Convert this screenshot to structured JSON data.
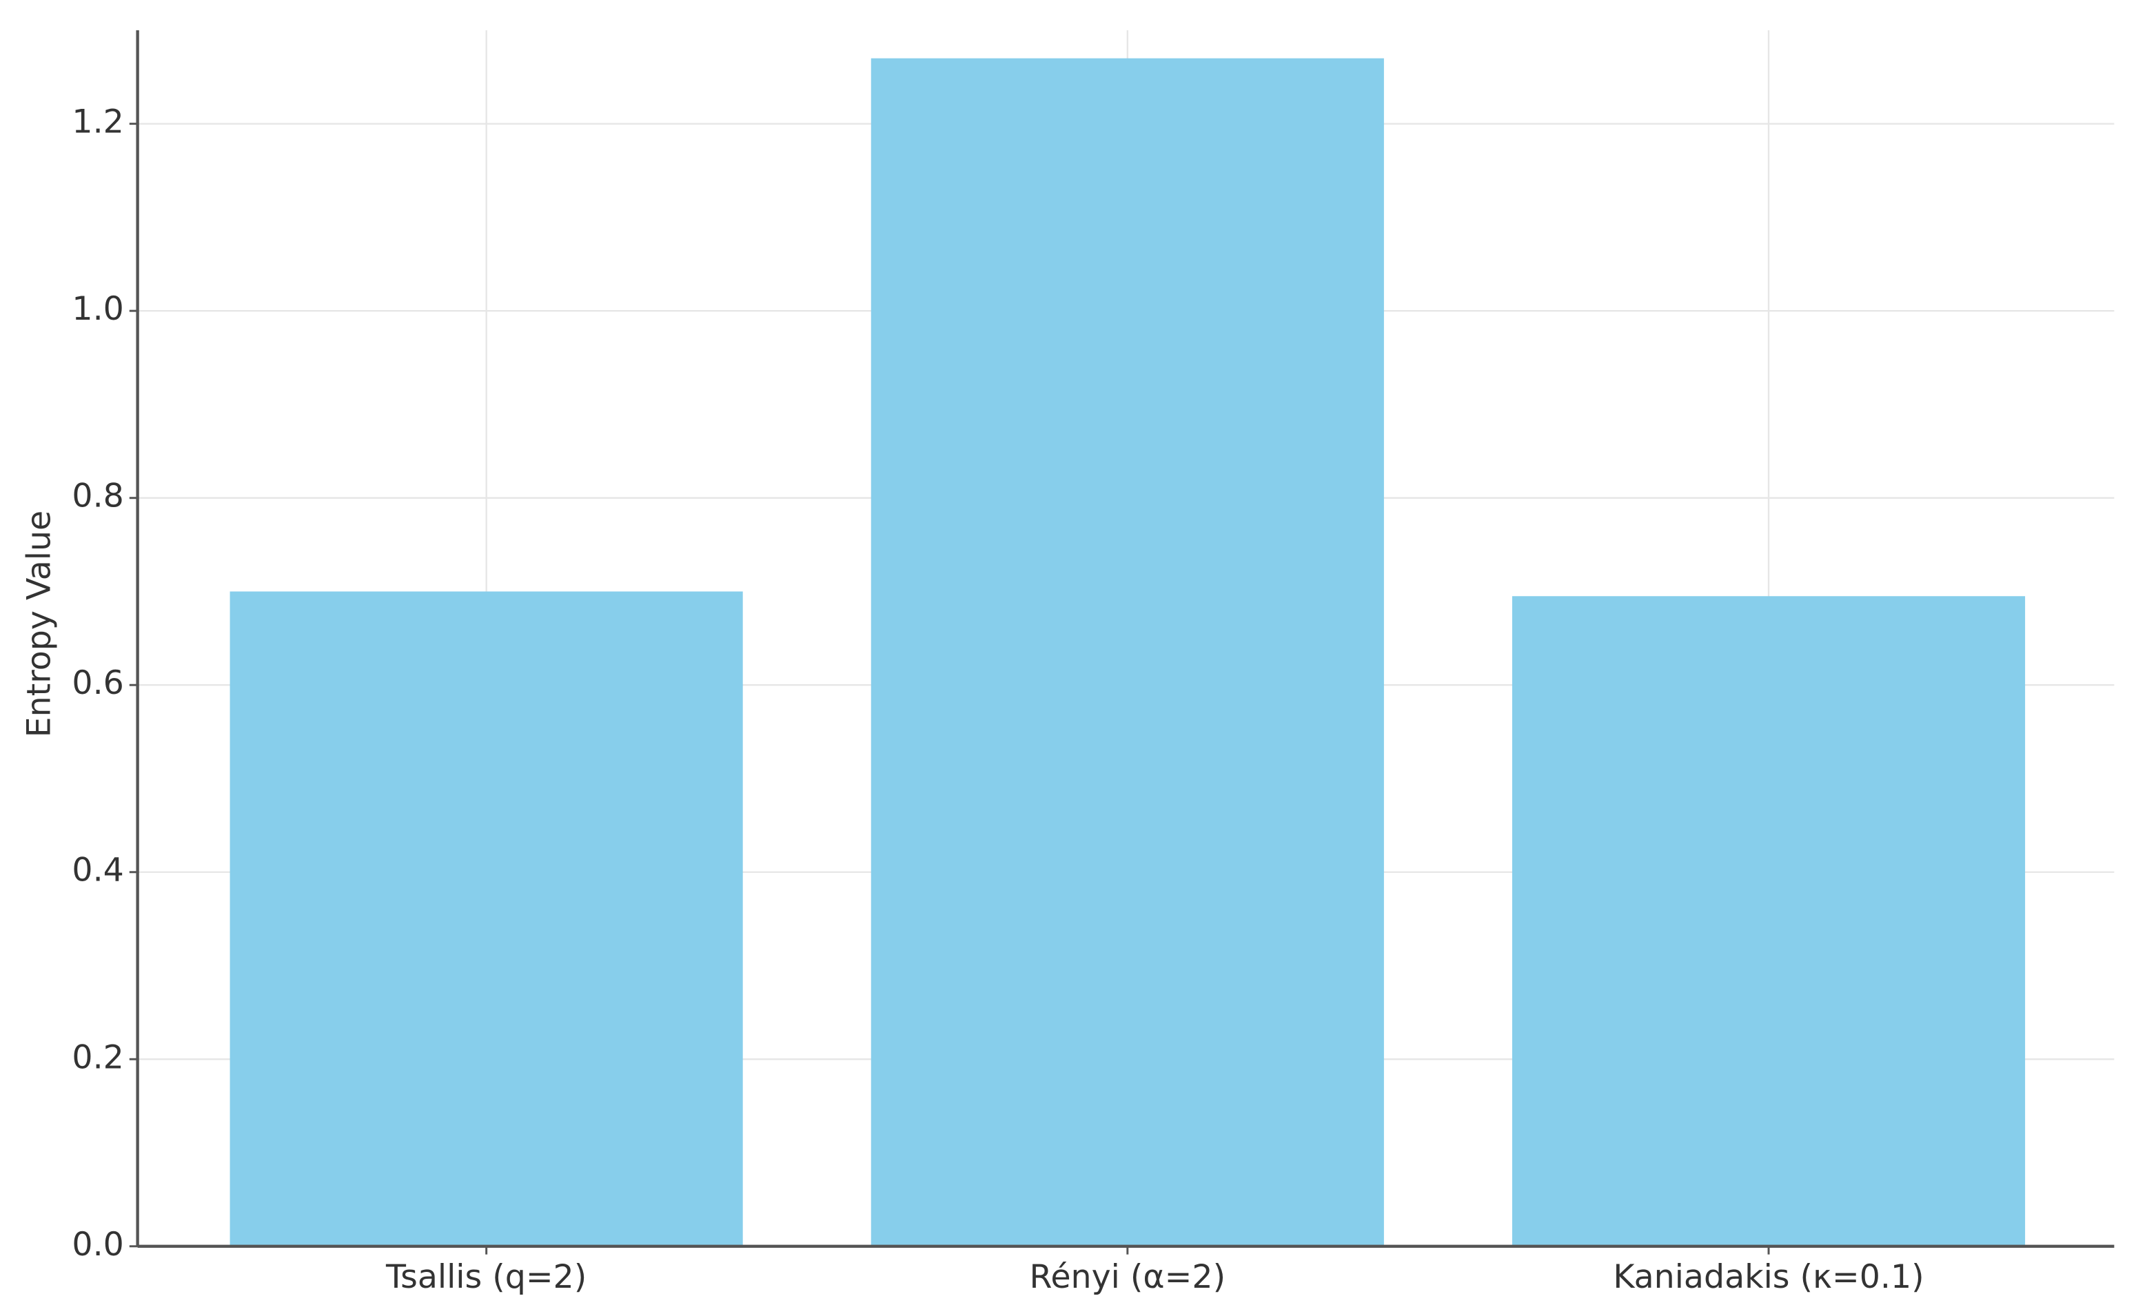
{
  "chart_data": {
    "type": "bar",
    "y_label": "Entropy Value",
    "categories": [
      "Tsallis (q=2)",
      "Rényi (α=2)",
      "Kaniadakis (κ=0.1)"
    ],
    "values": [
      0.7,
      1.27,
      0.695
    ],
    "color": "#87ceeb",
    "ylim": [
      0,
      1.3
    ],
    "yticks": [
      {
        "value": 0,
        "label": "0.0"
      },
      0.2,
      0.4,
      0.6,
      0.8,
      {
        "value": 1,
        "label": "1.0"
      },
      1.2
    ],
    "grid": true
  }
}
